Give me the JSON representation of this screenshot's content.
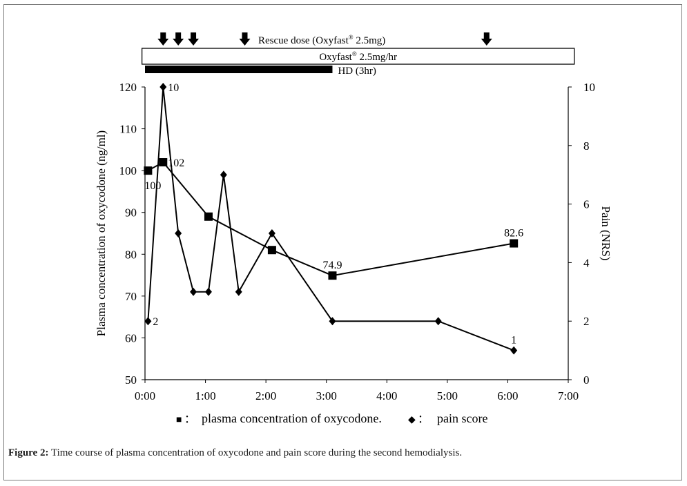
{
  "caption": {
    "label": "Figure 2:",
    "text": "Time course of plasma concentration of oxycodone and pain score during the second hemodialysis."
  },
  "chart_data": {
    "type": "line",
    "title": "",
    "x_ticks": [
      "0:00",
      "1:00",
      "2:00",
      "3:00",
      "4:00",
      "5:00",
      "6:00",
      "7:00"
    ],
    "xlim_hours": [
      0,
      7
    ],
    "ylabel_left": "Plasma concentration of oxycodone (ng/ml)",
    "ylim_left": [
      50,
      120
    ],
    "yticks_left": [
      50,
      60,
      70,
      80,
      90,
      100,
      110,
      120
    ],
    "ylabel_right": "Pain (NRS)",
    "ylim_right": [
      0,
      10
    ],
    "yticks_right": [
      0,
      2,
      4,
      6,
      8,
      10
    ],
    "grid": false,
    "legend_position": "bottom",
    "series": [
      {
        "name": "plasma concentration of oxycodone.",
        "axis": "left",
        "marker": "square",
        "color": "#000000",
        "x_hours": [
          0.05,
          0.3,
          1.05,
          2.1,
          3.1,
          6.1
        ],
        "values": [
          100,
          102,
          89,
          81,
          74.9,
          82.6
        ]
      },
      {
        "name": "pain score",
        "axis": "right",
        "marker": "diamond",
        "color": "#000000",
        "x_hours": [
          0.05,
          0.3,
          0.55,
          0.8,
          1.05,
          1.3,
          1.55,
          2.1,
          3.1,
          4.85,
          6.1
        ],
        "values": [
          2,
          10,
          5,
          3,
          3,
          7,
          3,
          5,
          2,
          2,
          1
        ]
      }
    ],
    "data_labels": [
      {
        "text": "100",
        "series": 0,
        "index": 0,
        "pos": "below"
      },
      {
        "text": "102",
        "series": 0,
        "index": 1,
        "pos": "right"
      },
      {
        "text": "74.9",
        "series": 0,
        "index": 4,
        "pos": "above"
      },
      {
        "text": "82.6",
        "series": 0,
        "index": 5,
        "pos": "above"
      },
      {
        "text": "2",
        "series": 1,
        "index": 0,
        "pos": "right"
      },
      {
        "text": "10",
        "series": 1,
        "index": 1,
        "pos": "right"
      },
      {
        "text": "1",
        "series": 1,
        "index": 10,
        "pos": "above"
      }
    ],
    "annotations": {
      "rescue_label": "Rescue dose (Oxyfast",
      "rescue_label_sup": "®",
      "rescue_label_end": " 2.5mg)",
      "rescue_doses_hours": [
        0.3,
        0.55,
        0.8,
        1.65,
        5.65
      ],
      "infusion_label": "Oxyfast",
      "infusion_sup": "®",
      "infusion_end": " 2.5mg/hr",
      "infusion_hours": [
        -0.05,
        7.1
      ],
      "hd_label": "HD (3hr)",
      "hd_hours": [
        0,
        3.1
      ]
    },
    "legend": {
      "square_marker": "■",
      "square_sep": "：",
      "square_text": "plasma concentration of oxycodone.",
      "diamond_marker": "◆",
      "diamond_sep": "：",
      "diamond_text": "pain score"
    }
  }
}
